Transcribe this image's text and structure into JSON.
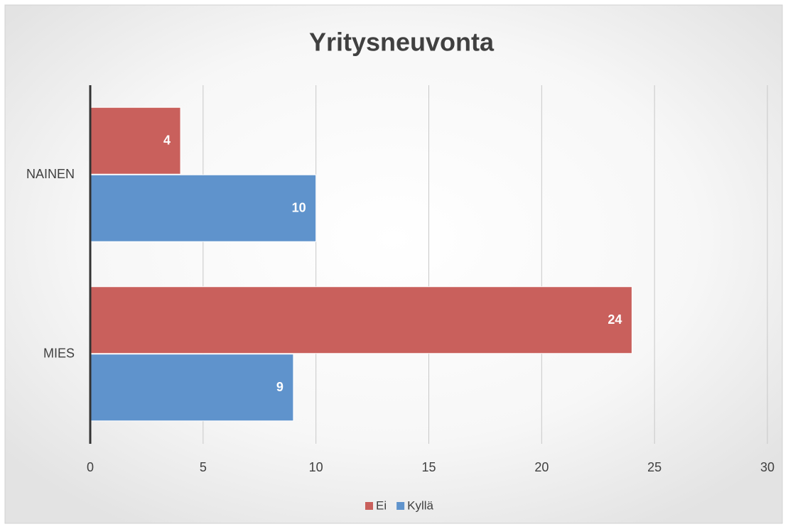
{
  "chart_data": {
    "type": "hbar",
    "title": "Yritysneuvonta",
    "categories": [
      "NAINEN",
      "MIES"
    ],
    "series": [
      {
        "name": "Ei",
        "color": "#c9605c",
        "values": [
          4,
          24
        ]
      },
      {
        "name": "Kyllä",
        "color": "#5f93cc",
        "values": [
          10,
          9
        ]
      }
    ],
    "xlim": [
      0,
      30
    ],
    "xticks": [
      0,
      5,
      10,
      15,
      20,
      25,
      30
    ],
    "grid": true,
    "legend": "bottom"
  }
}
